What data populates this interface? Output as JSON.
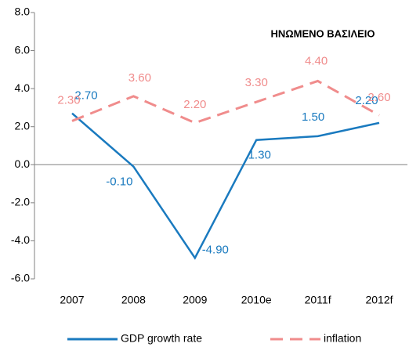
{
  "chart_data": {
    "type": "line",
    "title": "ΗΝΩΜΕΝΟ ΒΑΣΙΛΕΙΟ",
    "categories": [
      "2007",
      "2008",
      "2009",
      "2010e",
      "2011f",
      "2012f"
    ],
    "series": [
      {
        "name": "GDP growth rate",
        "color": "#1a7abf",
        "dash": false,
        "values": [
          2.7,
          -0.1,
          -4.9,
          1.3,
          1.5,
          2.2
        ],
        "value_labels": [
          "2.70",
          "-0.10",
          "-4.90",
          "1.30",
          "1.50",
          "2.20"
        ]
      },
      {
        "name": "inflation",
        "color": "#f08c8c",
        "dash": true,
        "values": [
          2.3,
          3.6,
          2.2,
          3.3,
          4.4,
          2.6
        ],
        "value_labels": [
          "2.30",
          "3.60",
          "2.20",
          "3.30",
          "4.40",
          "2.60"
        ]
      }
    ],
    "ylim": [
      -6,
      8
    ],
    "yticks": [
      {
        "value": -6,
        "label": "-6.0"
      },
      {
        "value": -4,
        "label": "-4.0"
      },
      {
        "value": -2,
        "label": "-2.0"
      },
      {
        "value": 0,
        "label": "0.0"
      },
      {
        "value": 2,
        "label": "2.0"
      },
      {
        "value": 4,
        "label": "4.0"
      },
      {
        "value": 6,
        "label": "6.0"
      },
      {
        "value": 8,
        "label": "8.0"
      }
    ],
    "grid": false
  }
}
